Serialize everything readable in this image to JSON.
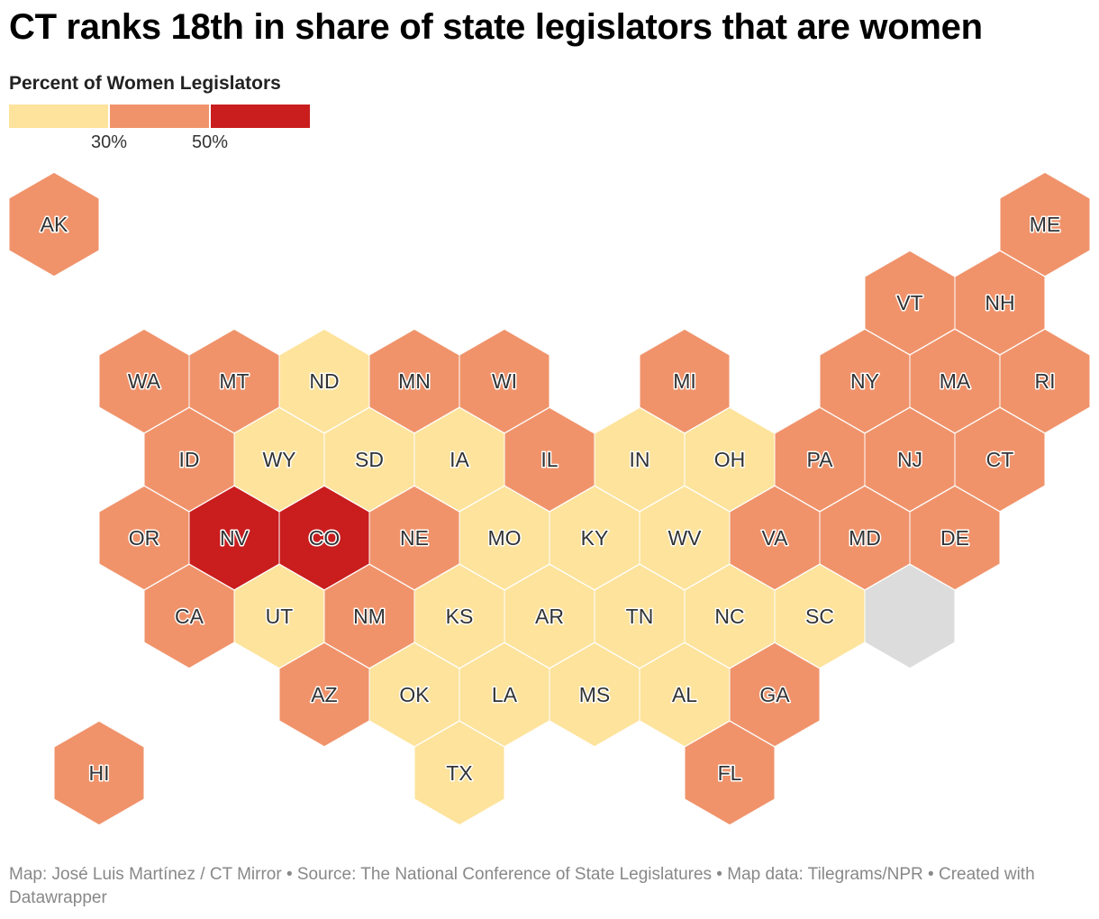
{
  "title": "CT ranks 18th in share of state legislators that are women",
  "legend": {
    "title": "Percent of Women Legislators",
    "ticks": [
      "30%",
      "50%"
    ],
    "colors": [
      "#fde39c",
      "#f0936b",
      "#c91d1e"
    ]
  },
  "colors": {
    "low": "#fde39c",
    "mid": "#f0936b",
    "high": "#c91d1e",
    "nodata": "#dcdcdc"
  },
  "states": [
    {
      "abbr": "AK",
      "row": 0,
      "col": 0,
      "cls": "mid"
    },
    {
      "abbr": "ME",
      "row": 0,
      "col": 11,
      "cls": "mid"
    },
    {
      "abbr": "VT",
      "row": 1,
      "col": 9.5,
      "cls": "mid"
    },
    {
      "abbr": "NH",
      "row": 1,
      "col": 10.5,
      "cls": "mid"
    },
    {
      "abbr": "WA",
      "row": 2,
      "col": 1,
      "cls": "mid"
    },
    {
      "abbr": "MT",
      "row": 2,
      "col": 2,
      "cls": "mid"
    },
    {
      "abbr": "ND",
      "row": 2,
      "col": 3,
      "cls": "low"
    },
    {
      "abbr": "MN",
      "row": 2,
      "col": 4,
      "cls": "mid"
    },
    {
      "abbr": "WI",
      "row": 2,
      "col": 5,
      "cls": "mid"
    },
    {
      "abbr": "MI",
      "row": 2,
      "col": 7,
      "cls": "mid"
    },
    {
      "abbr": "NY",
      "row": 2,
      "col": 9,
      "cls": "mid"
    },
    {
      "abbr": "MA",
      "row": 2,
      "col": 10,
      "cls": "mid"
    },
    {
      "abbr": "RI",
      "row": 2,
      "col": 11,
      "cls": "mid"
    },
    {
      "abbr": "ID",
      "row": 3,
      "col": 1.5,
      "cls": "mid"
    },
    {
      "abbr": "WY",
      "row": 3,
      "col": 2.5,
      "cls": "low"
    },
    {
      "abbr": "SD",
      "row": 3,
      "col": 3.5,
      "cls": "low"
    },
    {
      "abbr": "IA",
      "row": 3,
      "col": 4.5,
      "cls": "low"
    },
    {
      "abbr": "IL",
      "row": 3,
      "col": 5.5,
      "cls": "mid"
    },
    {
      "abbr": "IN",
      "row": 3,
      "col": 6.5,
      "cls": "low"
    },
    {
      "abbr": "OH",
      "row": 3,
      "col": 7.5,
      "cls": "low"
    },
    {
      "abbr": "PA",
      "row": 3,
      "col": 8.5,
      "cls": "mid"
    },
    {
      "abbr": "NJ",
      "row": 3,
      "col": 9.5,
      "cls": "mid"
    },
    {
      "abbr": "CT",
      "row": 3,
      "col": 10.5,
      "cls": "mid"
    },
    {
      "abbr": "OR",
      "row": 4,
      "col": 1,
      "cls": "mid"
    },
    {
      "abbr": "NV",
      "row": 4,
      "col": 2,
      "cls": "high"
    },
    {
      "abbr": "CO",
      "row": 4,
      "col": 3,
      "cls": "high"
    },
    {
      "abbr": "NE",
      "row": 4,
      "col": 4,
      "cls": "mid"
    },
    {
      "abbr": "MO",
      "row": 4,
      "col": 5,
      "cls": "low"
    },
    {
      "abbr": "KY",
      "row": 4,
      "col": 6,
      "cls": "low"
    },
    {
      "abbr": "WV",
      "row": 4,
      "col": 7,
      "cls": "low"
    },
    {
      "abbr": "VA",
      "row": 4,
      "col": 8,
      "cls": "mid"
    },
    {
      "abbr": "MD",
      "row": 4,
      "col": 9,
      "cls": "mid"
    },
    {
      "abbr": "DE",
      "row": 4,
      "col": 10,
      "cls": "mid"
    },
    {
      "abbr": "CA",
      "row": 5,
      "col": 1.5,
      "cls": "mid"
    },
    {
      "abbr": "UT",
      "row": 5,
      "col": 2.5,
      "cls": "low"
    },
    {
      "abbr": "NM",
      "row": 5,
      "col": 3.5,
      "cls": "mid"
    },
    {
      "abbr": "KS",
      "row": 5,
      "col": 4.5,
      "cls": "low"
    },
    {
      "abbr": "AR",
      "row": 5,
      "col": 5.5,
      "cls": "low"
    },
    {
      "abbr": "TN",
      "row": 5,
      "col": 6.5,
      "cls": "low"
    },
    {
      "abbr": "NC",
      "row": 5,
      "col": 7.5,
      "cls": "low"
    },
    {
      "abbr": "SC",
      "row": 5,
      "col": 8.5,
      "cls": "low"
    },
    {
      "abbr": "",
      "row": 5,
      "col": 9.5,
      "cls": "nodata"
    },
    {
      "abbr": "AZ",
      "row": 6,
      "col": 3,
      "cls": "mid"
    },
    {
      "abbr": "OK",
      "row": 6,
      "col": 4,
      "cls": "low"
    },
    {
      "abbr": "LA",
      "row": 6,
      "col": 5,
      "cls": "low"
    },
    {
      "abbr": "MS",
      "row": 6,
      "col": 6,
      "cls": "low"
    },
    {
      "abbr": "AL",
      "row": 6,
      "col": 7,
      "cls": "low"
    },
    {
      "abbr": "GA",
      "row": 6,
      "col": 8,
      "cls": "mid"
    },
    {
      "abbr": "HI",
      "row": 7,
      "col": 0.5,
      "cls": "mid"
    },
    {
      "abbr": "TX",
      "row": 7,
      "col": 4.5,
      "cls": "low"
    },
    {
      "abbr": "FL",
      "row": 7,
      "col": 7.5,
      "cls": "mid"
    }
  ],
  "footer": "Map: José Luis Martínez / CT Mirror • Source: The National Conference of State Legislatures • Map data: Tilegrams/NPR • Created with Datawrapper"
}
